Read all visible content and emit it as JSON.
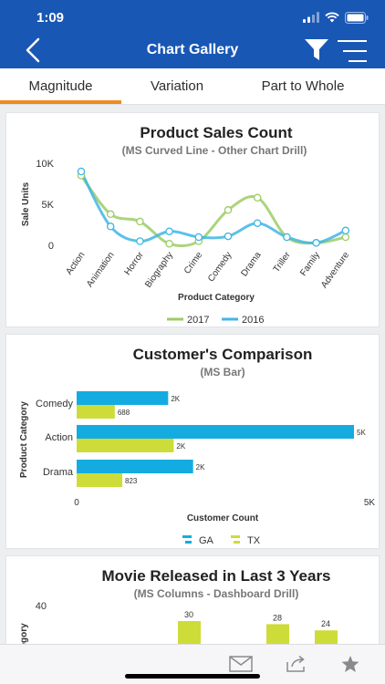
{
  "status": {
    "time": "1:09"
  },
  "header": {
    "title": "Chart Gallery"
  },
  "tabs": [
    {
      "label": "Magnitude",
      "active": true
    },
    {
      "label": "Variation",
      "active": false
    },
    {
      "label": "Part to Whole",
      "active": false
    }
  ],
  "colors": {
    "primary": "#1957b4",
    "accent": "#f08a1c",
    "series_2017": "#9ccc65",
    "series_2016": "#3fb6e4",
    "ga": "#14ace0",
    "tx": "#cddc39"
  },
  "chart_data": [
    {
      "type": "line",
      "title": "Product Sales Count",
      "subtitle": "(MS Curved Line - Other Chart Drill)",
      "xlabel": "Product Category",
      "ylabel": "Sale Units",
      "categories": [
        "Action",
        "Animation",
        "Horror",
        "Biography",
        "Crime",
        "Comedy",
        "Drama",
        "Triller",
        "Family",
        "Adventure"
      ],
      "yticks": [
        "0",
        "5K",
        "10K"
      ],
      "ylim": [
        0,
        10000
      ],
      "series": [
        {
          "name": "2017",
          "values": [
            8500,
            3800,
            2900,
            200,
            500,
            4300,
            5800,
            1000,
            300,
            1000
          ]
        },
        {
          "name": "2016",
          "values": [
            9000,
            2300,
            500,
            1700,
            1000,
            1100,
            2700,
            1000,
            300,
            1800
          ]
        }
      ],
      "legend": "bottom"
    },
    {
      "type": "bar",
      "orientation": "horizontal",
      "title": "Customer's Comparison",
      "subtitle": "(MS Bar)",
      "xlabel": "Customer Count",
      "ylabel": "Product Category",
      "categories": [
        "Comedy",
        "Action",
        "Drama"
      ],
      "xticks": [
        "0",
        "5K"
      ],
      "xlim": [
        0,
        5000
      ],
      "series": [
        {
          "name": "GA",
          "values": [
            1650,
            5000,
            2100
          ],
          "labels": [
            "2K",
            "5K",
            "2K"
          ]
        },
        {
          "name": "TX",
          "values": [
            688,
            1750,
            823
          ],
          "labels": [
            "688",
            "2K",
            "823"
          ]
        }
      ],
      "legend": "bottom"
    },
    {
      "type": "bar",
      "title": "Movie Released in Last 3 Years",
      "subtitle": "(MS Columns - Dashboard Drill)",
      "ylabel": "Category",
      "yticks": [
        "40"
      ],
      "ylim": [
        0,
        40
      ],
      "data_labels": [
        "30",
        "28",
        "24"
      ],
      "values": [
        30,
        28,
        24
      ]
    }
  ]
}
